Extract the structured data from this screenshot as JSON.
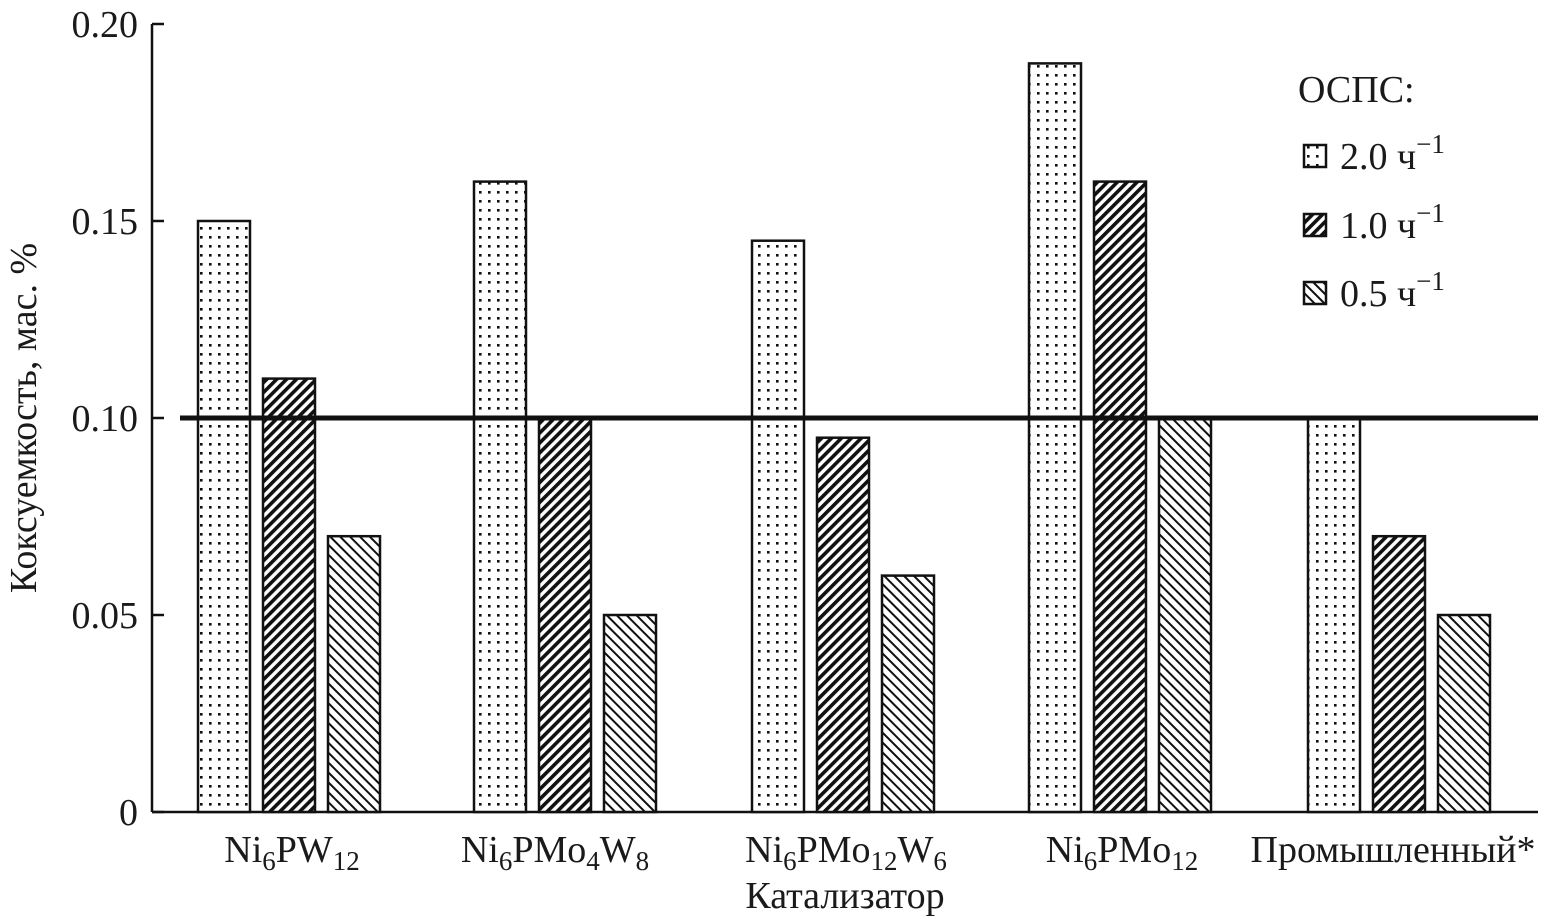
{
  "chart_data": {
    "type": "bar",
    "xlabel": "Катализатор",
    "ylabel": "Коксуемкость, мас. %",
    "ylim": [
      0,
      0.2
    ],
    "yticks": [
      "0",
      "0.05",
      "0.10",
      "0.15",
      "0.20"
    ],
    "categories": [
      {
        "base": "Ni",
        "sub1": "6",
        "mid": "PW",
        "sub2": "12",
        "tail": "",
        "sub3": ""
      },
      {
        "base": "Ni",
        "sub1": "6",
        "mid": "PMo",
        "sub2": "4",
        "tail": "W",
        "sub3": "8"
      },
      {
        "base": "Ni",
        "sub1": "6",
        "mid": "PMo",
        "sub2": "12",
        "tail": "W",
        "sub3": "6"
      },
      {
        "base": "Ni",
        "sub1": "6",
        "mid": "PMo",
        "sub2": "12",
        "tail": "",
        "sub3": ""
      },
      {
        "base": "Промышленный*",
        "sub1": "",
        "mid": "",
        "sub2": "",
        "tail": "",
        "sub3": ""
      }
    ],
    "series": [
      {
        "name": "2.0 ч",
        "sup": "−1",
        "pattern": "dots",
        "values": [
          0.15,
          0.16,
          0.145,
          0.19,
          0.1
        ]
      },
      {
        "name": "1.0 ч",
        "sup": "−1",
        "pattern": "hatch-dense",
        "values": [
          0.11,
          0.1,
          0.095,
          0.16,
          0.07
        ]
      },
      {
        "name": "0.5 ч",
        "sup": "−1",
        "pattern": "hatch-light",
        "values": [
          0.07,
          0.05,
          0.06,
          0.1,
          0.05
        ]
      }
    ],
    "reference_line": 0.1,
    "legend_title": "ОСПС:",
    "legend_position": "top-right",
    "grid": false
  }
}
